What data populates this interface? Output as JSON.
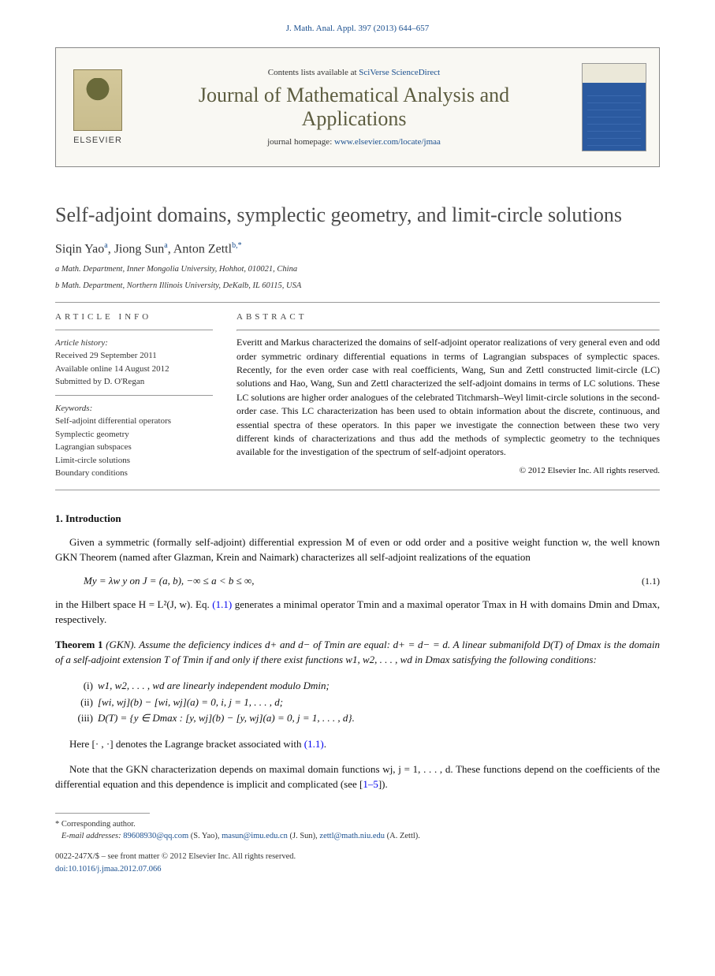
{
  "citation": "J. Math. Anal. Appl. 397 (2013) 644–657",
  "header": {
    "contents_prefix": "Contents lists available at ",
    "contents_link": "SciVerse ScienceDirect",
    "journal_name": "Journal of Mathematical Analysis and Applications",
    "homepage_prefix": "journal homepage: ",
    "homepage_link": "www.elsevier.com/locate/jmaa",
    "elsevier": "ELSEVIER"
  },
  "title": "Self-adjoint domains, symplectic geometry, and limit-circle solutions",
  "authors_html": "Siqin Yao",
  "authors": {
    "a1": "Siqin Yao",
    "a1_sup": "a",
    "a2": "Jiong Sun",
    "a2_sup": "a",
    "a3": "Anton Zettl",
    "a3_sup": "b,*"
  },
  "affils": {
    "a": "a Math. Department, Inner Mongolia University, Hohhot, 010021, China",
    "b": "b Math. Department, Northern Illinois University, DeKalb, IL 60115, USA"
  },
  "info_head": "ARTICLE INFO",
  "abs_head": "ABSTRACT",
  "history": {
    "label": "Article history:",
    "l1": "Received 29 September 2011",
    "l2": "Available online 14 August 2012",
    "l3": "Submitted by D. O'Regan"
  },
  "keywords": {
    "label": "Keywords:",
    "k1": "Self-adjoint differential operators",
    "k2": "Symplectic geometry",
    "k3": "Lagrangian subspaces",
    "k4": "Limit-circle solutions",
    "k5": "Boundary conditions"
  },
  "abstract": "Everitt and Markus characterized the domains of self-adjoint operator realizations of very general even and odd order symmetric ordinary differential equations in terms of Lagrangian subspaces of symplectic spaces. Recently, for the even order case with real coefficients, Wang, Sun and Zettl constructed limit-circle (LC) solutions and Hao, Wang, Sun and Zettl characterized the self-adjoint domains in terms of LC solutions. These LC solutions are higher order analogues of the celebrated Titchmarsh–Weyl limit-circle solutions in the second-order case. This LC characterization has been used to obtain information about the discrete, continuous, and essential spectra of these operators. In this paper we investigate the connection between these two very different kinds of characterizations and thus add the methods of symplectic geometry to the techniques available for the investigation of the spectrum of self-adjoint operators.",
  "copyright_line": "© 2012 Elsevier Inc. All rights reserved.",
  "section1": "1.  Introduction",
  "para1": "Given a symmetric (formally self-adjoint) differential expression M of even or odd order and a positive weight function w, the well known GKN Theorem (named after Glazman, Krein and Naimark) characterizes all self-adjoint realizations of the equation",
  "eq1": "My = λw y   on J = (a, b),   −∞ ≤ a < b ≤ ∞,",
  "eq1_num": "(1.1)",
  "para2a": "in the Hilbert space H = L²(J, w). Eq. ",
  "para2_link": "(1.1)",
  "para2b": " generates a minimal operator Tmin and a maximal operator Tmax in H with domains Dmin and Dmax, respectively.",
  "theorem": {
    "head": "Theorem 1 ",
    "name": "(GKN). ",
    "body": "Assume the deficiency indices d+ and d− of Tmin are equal: d+ = d− = d. A linear submanifold D(T) of Dmax is the domain of a self-adjoint extension T of Tmin if and only if there exist functions w1, w2, . . . , wd in Dmax satisfying the following conditions:"
  },
  "conds": {
    "c1_lbl": "(i)",
    "c1": "w1, w2, . . . , wd are linearly independent modulo Dmin;",
    "c2_lbl": "(ii)",
    "c2": "[wi, wj](b) − [wi, wj](a) = 0,  i, j = 1, . . . , d;",
    "c3_lbl": "(iii)",
    "c3": "D(T) = {y ∈ Dmax : [y, wj](b) − [y, wj](a) = 0,  j = 1, . . . , d}."
  },
  "para3a": "Here [· , ·] denotes the Lagrange bracket associated with ",
  "para3_link": "(1.1)",
  "para3b": ".",
  "para4a": "Note that the GKN characterization depends on maximal domain functions wj,  j = 1, . . . , d. These functions depend on the coefficients of the differential equation and this dependence is implicit and complicated (see [",
  "para4_link": "1–5",
  "para4b": "]).",
  "footnotes": {
    "corr": "* Corresponding author.",
    "email_label": "E-mail addresses: ",
    "e1": "89608930@qq.com",
    "n1": " (S. Yao), ",
    "e2": "masun@imu.edu.cn",
    "n2": " (J. Sun), ",
    "e3": "zettl@math.niu.edu",
    "n3": " (A. Zettl)."
  },
  "bottom": {
    "issn": "0022-247X/$ – see front matter © 2012 Elsevier Inc. All rights reserved.",
    "doi_label": "doi:",
    "doi": "10.1016/j.jmaa.2012.07.066"
  },
  "colors": {
    "link": "#1a4f8f",
    "journal": "#5c5c3f",
    "rule": "#999999",
    "text": "#111111"
  }
}
